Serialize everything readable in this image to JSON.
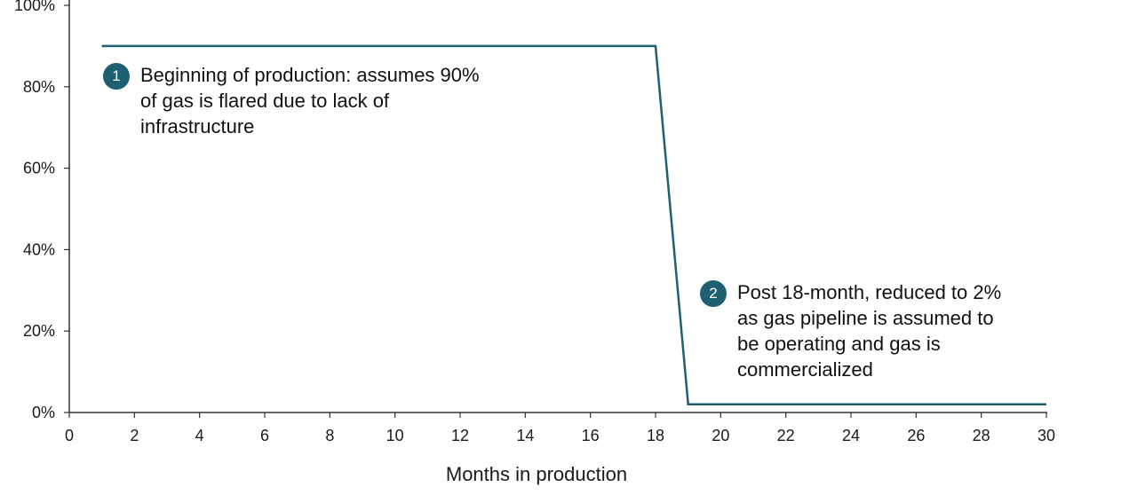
{
  "chart_data": {
    "type": "line",
    "xlabel": "Months in production",
    "ylabel": "",
    "xlim": [
      0,
      30
    ],
    "ylim": [
      0,
      100
    ],
    "x_ticks": [
      0,
      2,
      4,
      6,
      8,
      10,
      12,
      14,
      16,
      18,
      20,
      22,
      24,
      26,
      28,
      30
    ],
    "y_ticks": [
      0,
      20,
      40,
      60,
      80,
      100
    ],
    "y_tick_format": "percent",
    "grid": false,
    "line_color": "#1f5f72",
    "series": [
      {
        "x": [
          1,
          18,
          19,
          30
        ],
        "y": [
          90,
          90,
          2,
          2
        ]
      }
    ],
    "annotations": [
      {
        "number": "1",
        "text": "Beginning of production: assumes 90% of gas is flared due to lack of infrastructure"
      },
      {
        "number": "2",
        "text": "Post 18-month, reduced to 2% as gas pipeline is assumed to be operating and gas is commercialized"
      }
    ]
  }
}
